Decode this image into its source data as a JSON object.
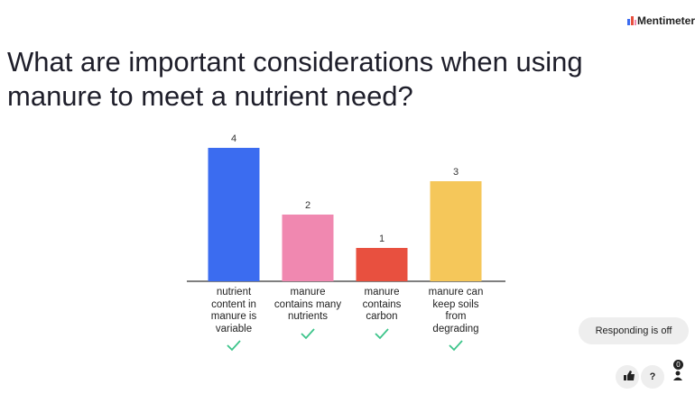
{
  "brand": "Mentimeter",
  "chart_data": {
    "type": "bar",
    "title": "What are important considerations when using manure to meet a nutrient need?",
    "categories": [
      "nutrient content in manure is variable",
      "manure contains many nutrients",
      "manure contains carbon",
      "manure can keep soils from degrading"
    ],
    "values": [
      4,
      2,
      1,
      3
    ],
    "colors": [
      "#3b6cf0",
      "#f088b0",
      "#e8503f",
      "#f5c75a"
    ]
  },
  "status": "Responding is off",
  "help": "?",
  "participants": 0
}
